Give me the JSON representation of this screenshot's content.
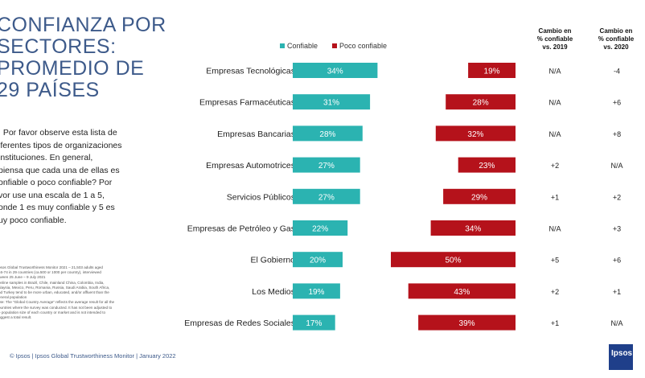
{
  "title": "CONFIANZA POR\nSECTORES:\nPROMEDIO DE\n29 PAÍSES",
  "question": ". Por favor observe esta lista de\niferentes tipos de organizaciones\ninstituciones. En general,\npiensa que cada una de ellas es\nonfiable o poco confiable? Por\nvor use una escala de 1 a 5,\nonde 1 es muy confiable y 5 es\nuy poco confiable.",
  "footnote": "psos Global Trustworthiness Monitor 2021 – 21,503 adults aged\n 16-74 in 29 countries (ca.500 or 1000 per country), interviewed\n tween 25 June – 9 July 2021\n online samples in Brazil, Chile, mainland China, Colombia, India,\n alaysia, Mexico, Peru, Romania, Russia, Saudi Arabia, South Africa,\n nd Turkey tend to be more urban, educated, and/or affluent than the\n eneral population\n ote: The “Global Country Average” reflects the average result for all the\n ountries where the survey was conducted. It has not been adjusted to\n e population size of each country or market and is not intended to\n uggest a total result.",
  "footer": "© Ipsos | Ipsos Global Trustworthiness Monitor | January 2022",
  "logo": "Ipsos",
  "legend": {
    "trusted": "Confiable",
    "untrusted": "Poco confiable"
  },
  "col_headers": {
    "change_2019": "Cambio en\n% confiable\nvs. 2019",
    "change_2020": "Cambio en\n% confiable\nvs. 2020"
  },
  "colors": {
    "trusted": "#2bb3b1",
    "untrusted": "#b5121b",
    "title": "#3d5a8a"
  },
  "chart_data": {
    "type": "bar",
    "categories": [
      "Empresas Tecnológicas",
      "Empresas Farmacéuticas",
      "Empresas Bancarias",
      "Empresas Automotrices",
      "Servicios Públicos",
      "Empresas de Petróleo y Gas",
      "El Gobierno",
      "Los Medios",
      "Empresas de Redes Sociales"
    ],
    "series": [
      {
        "name": "Confiable",
        "values": [
          34,
          31,
          28,
          27,
          27,
          22,
          20,
          19,
          17
        ]
      },
      {
        "name": "Poco confiable",
        "values": [
          19,
          28,
          32,
          23,
          29,
          34,
          50,
          43,
          39
        ]
      }
    ],
    "value_suffix": "%",
    "change_vs_2019": [
      "N/A",
      "N/A",
      "N/A",
      "+2",
      "+1",
      "N/A",
      "+5",
      "+2",
      "+1"
    ],
    "change_vs_2020": [
      "-4",
      "+6",
      "+8",
      "N/A",
      "+2",
      "+3",
      "+6",
      "+1",
      "N/A"
    ]
  }
}
